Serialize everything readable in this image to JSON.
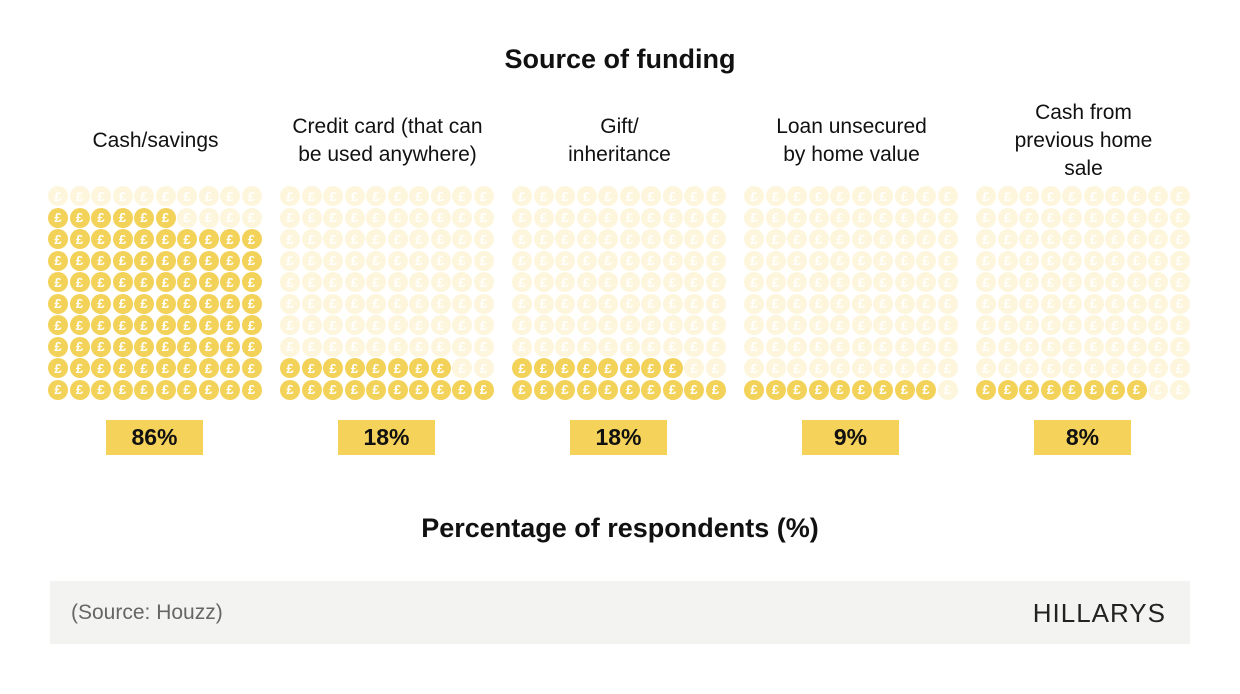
{
  "title": "Source of funding",
  "xlabel": "Percentage of respondents (%)",
  "footer": {
    "source": "(Source: Houzz)",
    "brand": "HILLARYS"
  },
  "colors": {
    "coin_on": "#f3d259",
    "coin_off": "#fdf6dc",
    "badge": "#f5d35a",
    "footer_bg": "#f3f3f2"
  },
  "icon": "pound-coin-icon",
  "chart_data": {
    "type": "bar",
    "subtype": "pictogram-waffle-10x10",
    "title": "Source of funding",
    "xlabel": "",
    "ylabel": "Percentage of respondents (%)",
    "categories": [
      "Cash/savings",
      "Credit card (that can be used anywhere)",
      "Gift/ inheritance",
      "Loan unsecured by home value",
      "Cash from previous home sale"
    ],
    "values": [
      86,
      18,
      18,
      9,
      8
    ],
    "ylim": [
      0,
      100
    ]
  },
  "columns": [
    {
      "label": "Cash/savings",
      "value": 86,
      "badge": "86%"
    },
    {
      "label": "Credit card (that can be used anywhere)",
      "value": 18,
      "badge": "18%"
    },
    {
      "label": "Gift/ inheritance",
      "value": 18,
      "badge": "18%"
    },
    {
      "label": "Loan unsecured by home value",
      "value": 9,
      "badge": "9%"
    },
    {
      "label": "Cash from previous home sale",
      "value": 8,
      "badge": "8%"
    }
  ]
}
